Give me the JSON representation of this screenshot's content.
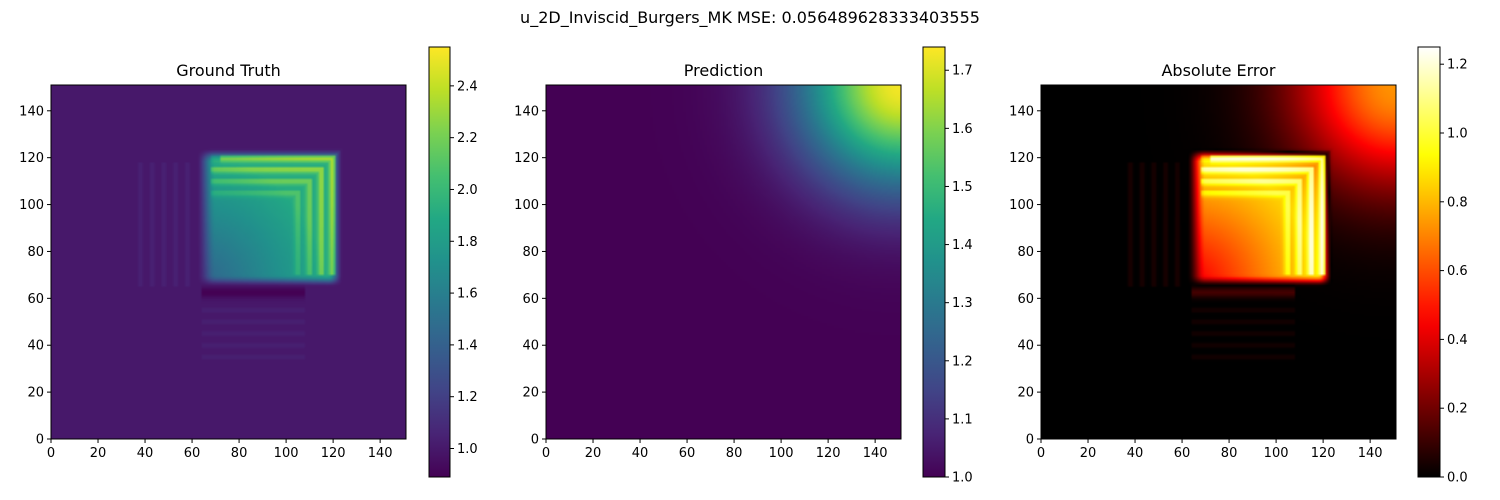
{
  "figure": {
    "suptitle": "u_2D_Inviscid_Burgers_MK MSE: 0.056489628333403555"
  },
  "chart_data": [
    {
      "type": "heatmap",
      "title": "Ground Truth",
      "xlim": [
        0,
        151
      ],
      "ylim": [
        0,
        151
      ],
      "x_ticks": [
        0,
        20,
        40,
        60,
        80,
        100,
        120,
        140
      ],
      "y_ticks": [
        0,
        20,
        40,
        60,
        80,
        100,
        120,
        140
      ],
      "colormap": "viridis",
      "colorbar": {
        "range": [
          0.89,
          2.55
        ],
        "ticks": [
          "1.0",
          "1.2",
          "1.4",
          "1.6",
          "1.8",
          "2.0",
          "2.2",
          "2.4"
        ],
        "tick_values": [
          1.0,
          1.2,
          1.4,
          1.6,
          1.8,
          2.0,
          2.2,
          2.4
        ]
      },
      "background_value": 1.0,
      "features": {
        "plateau": {
          "x_range": [
            62,
            118
          ],
          "y_range": [
            65,
            120
          ],
          "value_range": [
            1.4,
            1.9
          ]
        },
        "shock_fronts": [
          {
            "corner": [
              120,
              120
            ],
            "value": 2.45
          },
          {
            "corner": [
              115,
              115
            ],
            "value": 2.2
          },
          {
            "corner": [
              110,
              110
            ],
            "value": 2.1
          },
          {
            "corner": [
              105,
              105
            ],
            "value": 2.0
          }
        ],
        "trough": {
          "x_range": [
            64,
            108
          ],
          "y_range": [
            60,
            65
          ],
          "value": 0.9
        },
        "horizontal_ripples_y": [
          55,
          50,
          45,
          40,
          35
        ],
        "vertical_ripples_x": [
          58,
          53,
          48,
          43,
          38
        ]
      }
    },
    {
      "type": "heatmap",
      "title": "Prediction",
      "xlim": [
        0,
        151
      ],
      "ylim": [
        0,
        151
      ],
      "x_ticks": [
        0,
        20,
        40,
        60,
        80,
        100,
        120,
        140
      ],
      "y_ticks": [
        0,
        20,
        40,
        60,
        80,
        100,
        120,
        140
      ],
      "colormap": "viridis",
      "colorbar": {
        "range": [
          1.0,
          1.74
        ],
        "ticks": [
          "1.0",
          "1.1",
          "1.2",
          "1.3",
          "1.4",
          "1.5",
          "1.6",
          "1.7"
        ],
        "tick_values": [
          1.0,
          1.1,
          1.2,
          1.3,
          1.4,
          1.5,
          1.6,
          1.7
        ]
      },
      "background_value": 1.0,
      "features": {
        "blob": {
          "center": [
            151,
            151
          ],
          "peak_value": 1.73,
          "edge_start": [
            95,
            95
          ]
        }
      }
    },
    {
      "type": "heatmap",
      "title": "Absolute Error",
      "xlim": [
        0,
        151
      ],
      "ylim": [
        0,
        151
      ],
      "x_ticks": [
        0,
        20,
        40,
        60,
        80,
        100,
        120,
        140
      ],
      "y_ticks": [
        0,
        20,
        40,
        60,
        80,
        100,
        120,
        140
      ],
      "colormap": "hot",
      "colorbar": {
        "range": [
          0.0,
          1.25
        ],
        "ticks": [
          "0.0",
          "0.2",
          "0.4",
          "0.6",
          "0.8",
          "1.0",
          "1.2"
        ],
        "tick_values": [
          0.0,
          0.2,
          0.4,
          0.6,
          0.8,
          1.0,
          1.2
        ]
      },
      "background_value": 0.0
    }
  ]
}
